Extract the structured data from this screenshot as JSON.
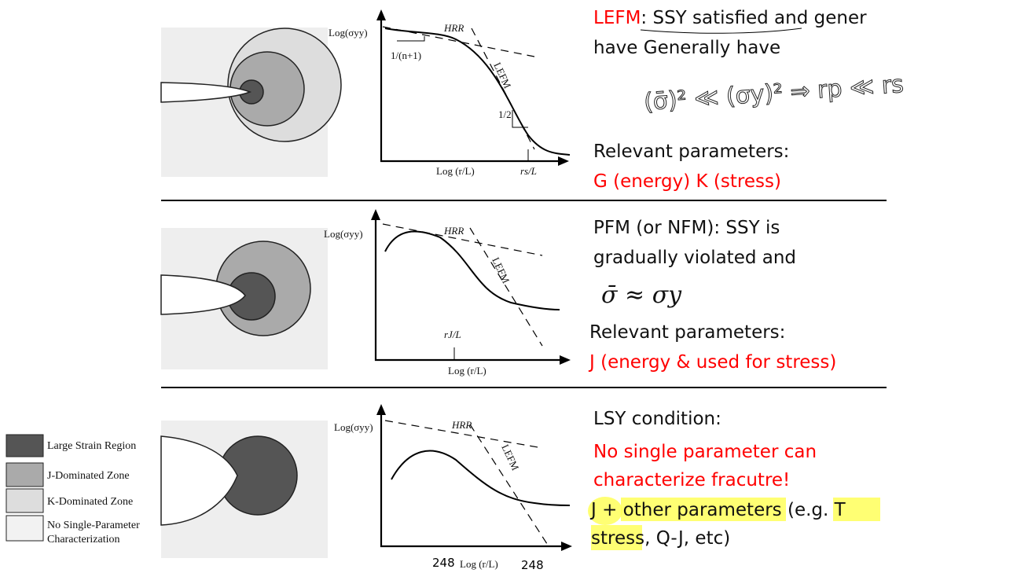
{
  "panels": [
    {
      "plot": {
        "y_label": "Log(σyy)",
        "hrr": "HRR",
        "lefm": "LEFM",
        "x_label": "Log (r/L)",
        "marker": "rs/L",
        "slope_1": "1/(n+1)",
        "slope_2": "1/2"
      },
      "text": {
        "lead": "LEFM",
        "line_1": ": SSY satisfied and gener",
        "line_2": "have Generally have",
        "handwriting": "(σ̄)² ≪ (σy)² ⇒ rp ≪ rs",
        "params_label": "Relevant parameters:",
        "params": "G (energy) K (stress)"
      }
    },
    {
      "plot": {
        "y_label": "Log(σyy)",
        "hrr": "HRR",
        "lefm": "LEFM",
        "x_label": "Log (r/L)",
        "marker": "rJ/L"
      },
      "text": {
        "line_1": "PFM (or NFM): SSY is",
        "line_2": "gradually violated and",
        "formula": "σ̄ ≈ σy",
        "params_label": "Relevant parameters:",
        "params": "J (energy & used for stress)"
      }
    },
    {
      "plot": {
        "y_label": "Log(σyy)",
        "hrr": "HRR",
        "lefm": "LEFM",
        "x_label": "Log (r/L)",
        "number_left": "248",
        "number_right": "248"
      },
      "text": {
        "line_1": "LSY condition:",
        "line_2": "No single parameter can",
        "line_3": "characterize fracutre!",
        "line_4": "J + other parameters (e.g. T",
        "line_5": "stress, Q-J, etc)"
      }
    }
  ],
  "legend": [
    "Large Strain Region",
    "J-Dominated Zone",
    "K-Dominated Zone",
    "No Single-Parameter",
    "Characterization"
  ]
}
